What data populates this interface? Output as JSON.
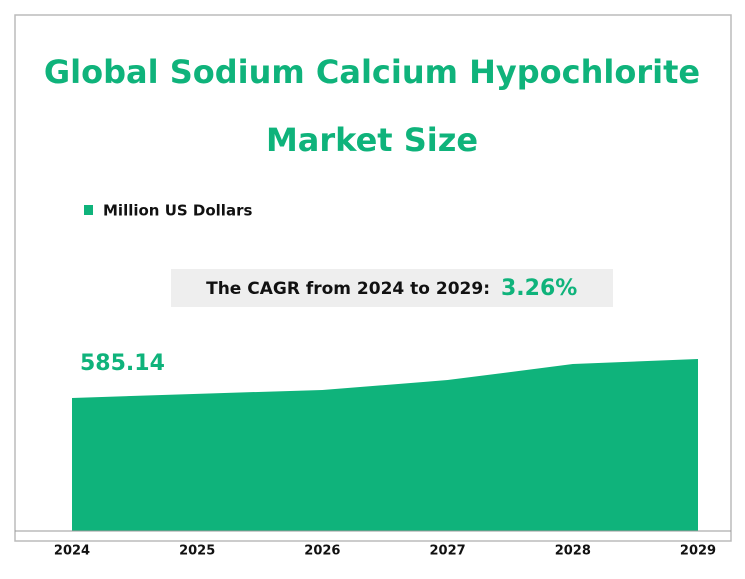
{
  "chart_data": {
    "type": "area",
    "title": "Global Sodium Calcium Hypochlorite Market Size",
    "legend": "Million US Dollars",
    "cagr_label": "The CAGR from 2024 to 2029:",
    "cagr_value": "3.26%",
    "categories": [
      "2024",
      "2025",
      "2026",
      "2027",
      "2028",
      "2029"
    ],
    "values": [
      585.14,
      596,
      606,
      632,
      674,
      687
    ],
    "color": "#0fb37b",
    "ylim": [
      237,
      763
    ]
  }
}
